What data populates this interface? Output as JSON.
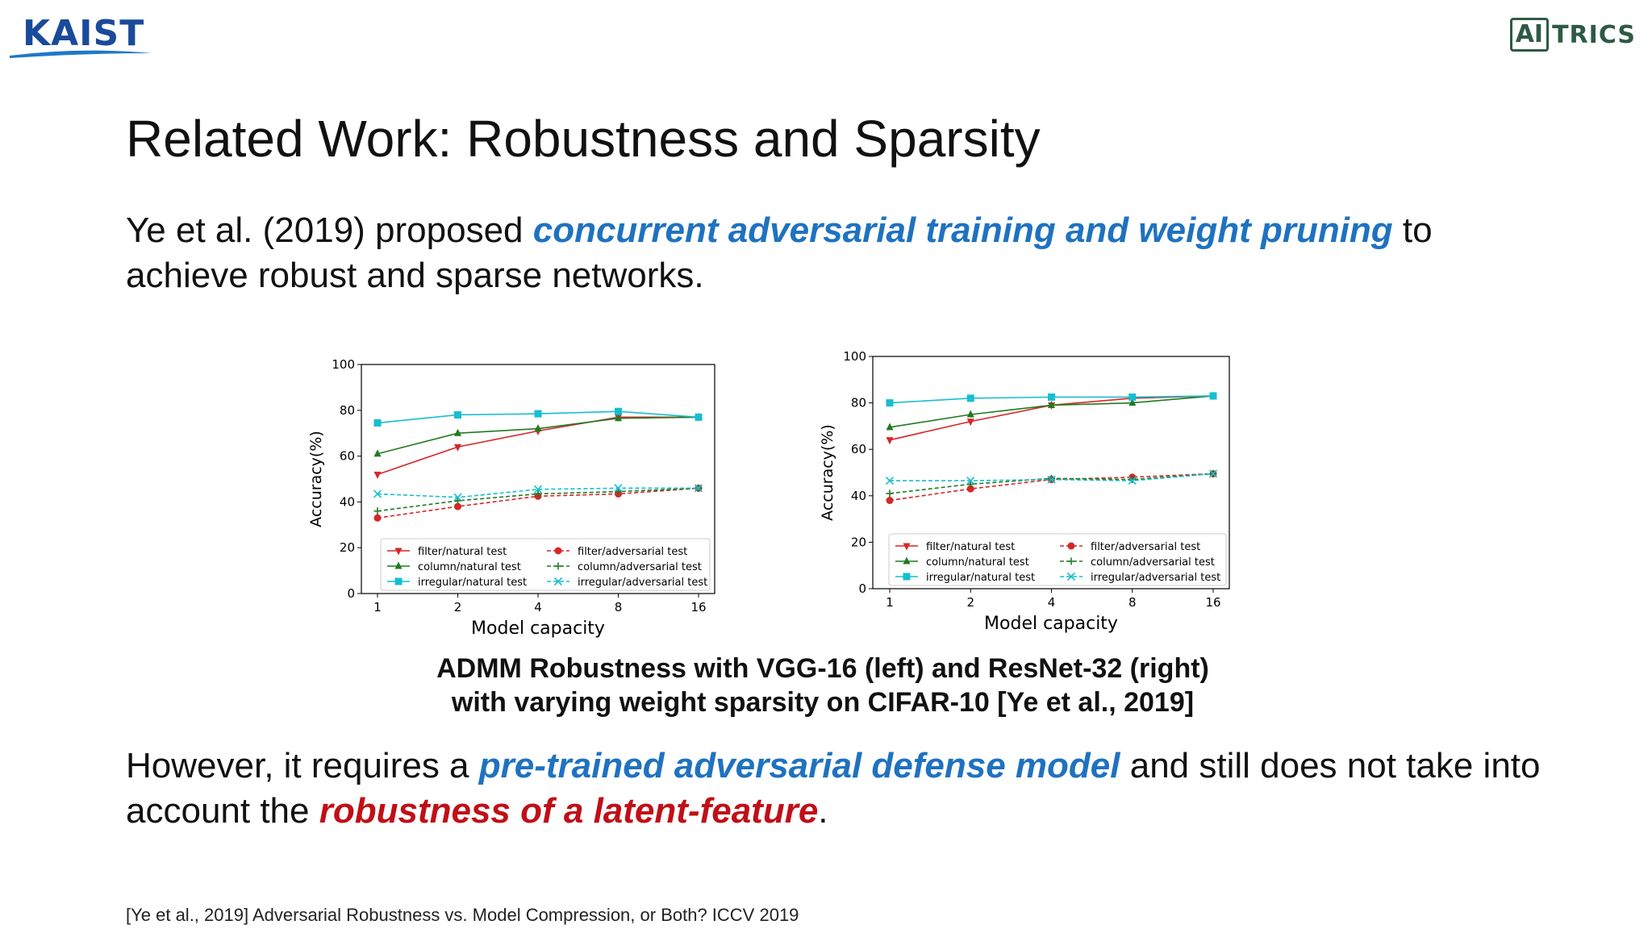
{
  "logos": {
    "left": "KAIST",
    "right_boxed": "AI",
    "right_rest": "TRICS"
  },
  "title": "Related Work: Robustness and Sparsity",
  "para1": {
    "t1": "Ye et al. (2019) proposed ",
    "h1": "concurrent adversarial training and weight pruning",
    "t2": " to achieve robust and sparse networks."
  },
  "caption": {
    "line1": "ADMM Robustness with VGG-16 (left) and ResNet-32 (right)",
    "line2": "with varying weight sparsity on CIFAR-10 [Ye et al., 2019]"
  },
  "para2": {
    "t1": "However, it requires a ",
    "h1": "pre-trained adversarial defense model",
    "t2": " and still does not take into account the ",
    "h2": "robustness of a latent-feature",
    "t3": "."
  },
  "reference": "[Ye et al., 2019] Adversarial Robustness vs. Model Compression, or Both? ICCV 2019",
  "colors": {
    "filter": "#d62728",
    "column": "#217a21",
    "irregular": "#17becf",
    "blue_highlight": "#1f72c0",
    "red_highlight": "#c00f17"
  },
  "chart_data": [
    {
      "type": "line",
      "categories": [
        "1",
        "2",
        "4",
        "8",
        "16"
      ],
      "xlabel": "Model capacity",
      "ylabel": "Accuracy(%)",
      "ylim": [
        0,
        100
      ],
      "yticks": [
        "0",
        "20",
        "40",
        "60",
        "80",
        "100"
      ],
      "legend_position": "lower-center",
      "series": [
        {
          "name": "filter/natural test",
          "values": [
            52,
            64,
            71,
            77,
            77
          ],
          "color": "#d62728",
          "dashed": false,
          "marker": "triangle-down"
        },
        {
          "name": "filter/adversarial test",
          "values": [
            33,
            38,
            42.5,
            43.5,
            46
          ],
          "color": "#d62728",
          "dashed": true,
          "marker": "circle"
        },
        {
          "name": "column/natural test",
          "values": [
            61,
            70,
            72,
            76.5,
            77
          ],
          "color": "#217a21",
          "dashed": false,
          "marker": "triangle-up"
        },
        {
          "name": "column/adversarial test",
          "values": [
            36,
            40.5,
            43.5,
            44.5,
            46
          ],
          "color": "#217a21",
          "dashed": true,
          "marker": "plus"
        },
        {
          "name": "irregular/natural test",
          "values": [
            74.5,
            78,
            78.5,
            79.5,
            77
          ],
          "color": "#17becf",
          "dashed": false,
          "marker": "square"
        },
        {
          "name": "irregular/adversarial test",
          "values": [
            43.5,
            42,
            45.5,
            46,
            46
          ],
          "color": "#17becf",
          "dashed": true,
          "marker": "x"
        }
      ]
    },
    {
      "type": "line",
      "categories": [
        "1",
        "2",
        "4",
        "8",
        "16"
      ],
      "xlabel": "Model capacity",
      "ylabel": "Accuracy(%)",
      "ylim": [
        0,
        100
      ],
      "yticks": [
        "0",
        "20",
        "40",
        "60",
        "80",
        "100"
      ],
      "legend_position": "lower-center",
      "series": [
        {
          "name": "filter/natural test",
          "values": [
            64,
            72,
            79,
            82,
            83
          ],
          "color": "#d62728",
          "dashed": false,
          "marker": "triangle-down"
        },
        {
          "name": "filter/adversarial test",
          "values": [
            38,
            43,
            47,
            48,
            49.5
          ],
          "color": "#d62728",
          "dashed": true,
          "marker": "circle"
        },
        {
          "name": "column/natural test",
          "values": [
            69.5,
            75,
            79,
            80,
            83
          ],
          "color": "#217a21",
          "dashed": false,
          "marker": "triangle-up"
        },
        {
          "name": "column/adversarial test",
          "values": [
            41,
            45,
            47.5,
            47,
            49.5
          ],
          "color": "#217a21",
          "dashed": true,
          "marker": "plus"
        },
        {
          "name": "irregular/natural test",
          "values": [
            80,
            82,
            82.5,
            82.5,
            83
          ],
          "color": "#17becf",
          "dashed": false,
          "marker": "square"
        },
        {
          "name": "irregular/adversarial test",
          "values": [
            46.5,
            46.5,
            47,
            46.5,
            49.5
          ],
          "color": "#17becf",
          "dashed": true,
          "marker": "x"
        }
      ]
    }
  ]
}
